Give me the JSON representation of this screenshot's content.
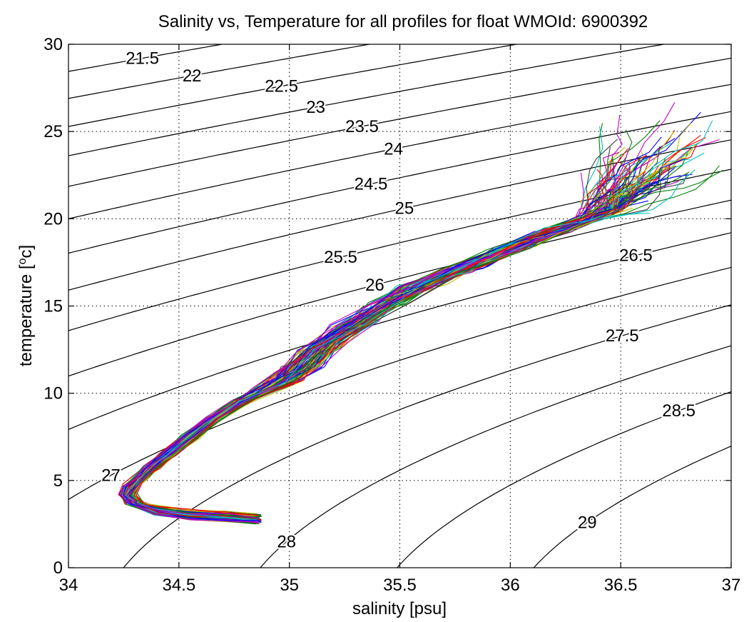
{
  "chart_data": {
    "type": "line",
    "title": "Salinity vs, Temperature for all profiles for float WMOId: 6900392",
    "xlabel": "salinity [psu]",
    "ylabel_main": "temperature [",
    "ylabel_sup": "o",
    "ylabel_end": "c]",
    "xlim": [
      34,
      37
    ],
    "ylim": [
      0,
      30
    ],
    "x_ticks": [
      34,
      34.5,
      35,
      35.5,
      36,
      36.5,
      37
    ],
    "x_tick_labels": [
      "34",
      "34.5",
      "35",
      "35.5",
      "36",
      "36.5",
      "37"
    ],
    "y_ticks": [
      0,
      5,
      10,
      15,
      20,
      25,
      30
    ],
    "y_tick_labels": [
      "0",
      "5",
      "10",
      "15",
      "20",
      "25",
      "30"
    ],
    "grid": true,
    "profile_colors": [
      "#0000ff",
      "#008000",
      "#ff0000",
      "#00bfbf",
      "#bf00bf",
      "#bfbf00",
      "#404040"
    ],
    "profile_count": 110,
    "profile_spine": [
      [
        34.86,
        2.8
      ],
      [
        34.72,
        2.95
      ],
      [
        34.55,
        3.05
      ],
      [
        34.4,
        3.3
      ],
      [
        34.3,
        3.7
      ],
      [
        34.27,
        4.2
      ],
      [
        34.29,
        4.7
      ],
      [
        34.33,
        5.2
      ],
      [
        34.38,
        5.8
      ],
      [
        34.45,
        6.5
      ],
      [
        34.55,
        7.5
      ],
      [
        34.65,
        8.5
      ],
      [
        34.78,
        9.5
      ],
      [
        34.95,
        10.5
      ],
      [
        35.05,
        11.5
      ],
      [
        35.15,
        12.7
      ],
      [
        35.3,
        14.0
      ],
      [
        35.45,
        15.2
      ],
      [
        35.6,
        16.2
      ],
      [
        35.8,
        17.2
      ],
      [
        36.0,
        18.3
      ],
      [
        36.2,
        19.3
      ],
      [
        36.4,
        20.2
      ]
    ],
    "contours": [
      {
        "sigma": 21.5,
        "label": "21.5"
      },
      {
        "sigma": 22,
        "label": "22"
      },
      {
        "sigma": 22.5,
        "label": "22.5"
      },
      {
        "sigma": 23,
        "label": "23"
      },
      {
        "sigma": 23.5,
        "label": "23.5"
      },
      {
        "sigma": 24,
        "label": "24"
      },
      {
        "sigma": 24.5,
        "label": "24.5"
      },
      {
        "sigma": 25,
        "label": "25"
      },
      {
        "sigma": 25.5,
        "label": "25.5"
      },
      {
        "sigma": 26,
        "label": "26"
      },
      {
        "sigma": 26.5,
        "label": "26.5"
      },
      {
        "sigma": 27,
        "label": "27"
      },
      {
        "sigma": 27.5,
        "label": "27.5"
      },
      {
        "sigma": 28,
        "label": "28"
      },
      {
        "sigma": 28.5,
        "label": "28.5"
      },
      {
        "sigma": 29,
        "label": "29"
      }
    ]
  }
}
